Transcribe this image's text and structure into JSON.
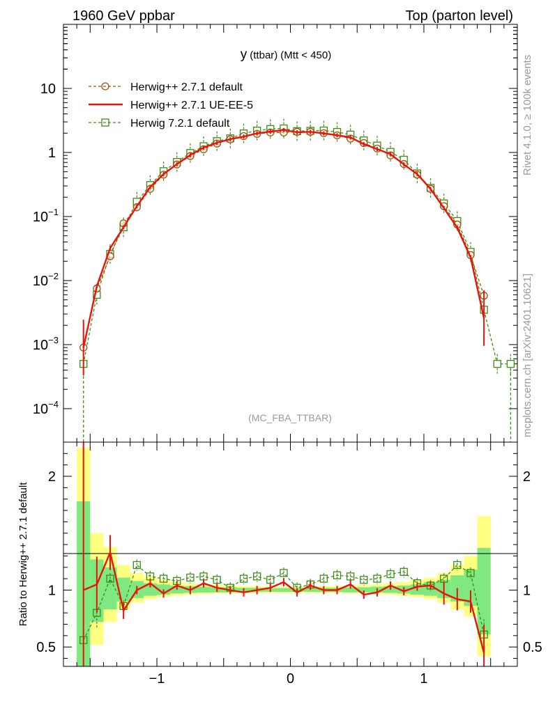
{
  "header": {
    "left_label": "1960 GeV ppbar",
    "right_label": "Top (parton level)"
  },
  "side_labels": {
    "rivet": "Rivet 4.1.0, ≥ 100k events",
    "mcplots": "mcplots.cern.ch [arXiv:2401.10621]"
  },
  "chart_data": [
    {
      "type": "line",
      "panel": "main",
      "title": "y (ttbar) (Mtt < 450)",
      "title_main": "y",
      "title_sub": "(ttbar)",
      "title_cond": "(Mtt < 450)",
      "watermark": "(MC_FBA_TTBAR)",
      "yscale": "log",
      "xlim": [
        -1.7,
        1.7
      ],
      "ylim": [
        3e-05,
        100
      ],
      "y_ticks": [
        {
          "value": 10,
          "base": "10",
          "exp": ""
        },
        {
          "value": 1,
          "base": "1",
          "exp": ""
        },
        {
          "value": 0.1,
          "base": "10",
          "exp": "−1"
        },
        {
          "value": 0.01,
          "base": "10",
          "exp": "−2"
        },
        {
          "value": 0.001,
          "base": "10",
          "exp": "−3"
        },
        {
          "value": 0.0001,
          "base": "10",
          "exp": "−4"
        }
      ],
      "legend": {
        "position": "top-left",
        "entries": [
          "Herwig++ 2.7.1 default",
          "Herwig++ 2.7.1 UE-EE-5",
          "Herwig 7.2.1 default"
        ]
      },
      "colors": {
        "herwig_default": "#a0500a",
        "ue_ee5": "#e8140a",
        "h7": "#3c8c14"
      },
      "series": [
        {
          "name": "Herwig++ 2.7.1 default",
          "style": "circle-dashed",
          "x": [
            -1.55,
            -1.45,
            -1.35,
            -1.25,
            -1.15,
            -1.05,
            -0.95,
            -0.85,
            -0.75,
            -0.65,
            -0.55,
            -0.45,
            -0.35,
            -0.25,
            -0.15,
            -0.05,
            0.05,
            0.15,
            0.25,
            0.35,
            0.45,
            0.55,
            0.65,
            0.75,
            0.85,
            0.95,
            1.05,
            1.15,
            1.25,
            1.35,
            1.45
          ],
          "values": [
            0.0009,
            0.0075,
            0.024,
            0.078,
            0.14,
            0.27,
            0.45,
            0.65,
            0.88,
            1.12,
            1.38,
            1.6,
            1.8,
            1.95,
            2.05,
            2.05,
            2.1,
            2.1,
            2.0,
            1.85,
            1.65,
            1.4,
            1.15,
            0.9,
            0.66,
            0.45,
            0.27,
            0.145,
            0.075,
            0.025,
            0.0058
          ]
        },
        {
          "name": "Herwig++ 2.7.1 UE-EE-5",
          "style": "solid",
          "x": [
            -1.55,
            -1.45,
            -1.35,
            -1.25,
            -1.15,
            -1.05,
            -0.95,
            -0.85,
            -0.75,
            -0.65,
            -0.55,
            -0.45,
            -0.35,
            -0.25,
            -0.15,
            -0.05,
            0.05,
            0.15,
            0.25,
            0.35,
            0.45,
            0.55,
            0.65,
            0.75,
            0.85,
            0.95,
            1.05,
            1.15,
            1.25,
            1.35,
            1.45
          ],
          "values": [
            0.0009,
            0.0082,
            0.032,
            0.068,
            0.145,
            0.29,
            0.46,
            0.66,
            0.91,
            1.19,
            1.42,
            1.61,
            1.77,
            1.99,
            2.12,
            2.24,
            2.07,
            2.1,
            1.99,
            1.86,
            1.72,
            1.35,
            1.13,
            0.94,
            0.65,
            0.46,
            0.27,
            0.135,
            0.067,
            0.023,
            0.0026
          ]
        },
        {
          "name": "Herwig 7.2.1 default",
          "style": "square-dashed",
          "x": [
            -1.55,
            -1.45,
            -1.35,
            -1.25,
            -1.15,
            -1.05,
            -0.95,
            -0.85,
            -0.75,
            -0.65,
            -0.55,
            -0.45,
            -0.35,
            -0.25,
            -0.15,
            -0.05,
            0.05,
            0.15,
            0.25,
            0.35,
            0.45,
            0.55,
            0.65,
            0.75,
            0.85,
            0.95,
            1.05,
            1.15,
            1.25,
            1.35,
            1.45,
            1.55,
            1.65
          ],
          "values": [
            0.0005,
            0.006,
            0.026,
            0.068,
            0.17,
            0.31,
            0.51,
            0.71,
            0.98,
            1.25,
            1.5,
            1.66,
            1.98,
            2.19,
            2.32,
            2.37,
            2.15,
            2.18,
            2.2,
            2.09,
            1.9,
            1.54,
            1.28,
            1.02,
            0.77,
            0.47,
            0.28,
            0.16,
            0.085,
            0.028,
            0.0035,
            0.0005,
            0.0005
          ]
        }
      ]
    },
    {
      "type": "line",
      "panel": "ratio",
      "ylabel": "Ratio to Herwig++ 2.7.1 default",
      "xlim": [
        -1.7,
        1.7
      ],
      "ylim": [
        0.33,
        2.3
      ],
      "y_ticks": [
        "0.5",
        "1",
        "2"
      ],
      "x_ticks": [
        "−1",
        "0",
        "1"
      ],
      "band_edges": [
        -1.6,
        -1.5,
        -1.4,
        -1.3,
        -1.2,
        -1.1,
        -1.0,
        -0.9,
        -0.8,
        -0.7,
        -0.6,
        -0.5,
        -0.4,
        -0.3,
        -0.2,
        -0.1,
        0.0,
        0.1,
        0.2,
        0.3,
        0.4,
        0.5,
        0.6,
        0.7,
        0.8,
        0.9,
        1.0,
        1.1,
        1.2,
        1.3,
        1.4,
        1.5
      ],
      "band_yellow": [
        [
          0.1,
          2.25
        ],
        [
          0.52,
          1.5
        ],
        [
          0.72,
          1.38
        ],
        [
          0.83,
          1.22
        ],
        [
          0.89,
          1.15
        ],
        [
          0.92,
          1.12
        ],
        [
          0.94,
          1.09
        ],
        [
          0.95,
          1.07
        ],
        [
          0.96,
          1.06
        ],
        [
          0.965,
          1.05
        ],
        [
          0.97,
          1.045
        ],
        [
          0.97,
          1.04
        ],
        [
          0.975,
          1.035
        ],
        [
          0.975,
          1.035
        ],
        [
          0.975,
          1.03
        ],
        [
          0.975,
          1.03
        ],
        [
          0.975,
          1.03
        ],
        [
          0.975,
          1.03
        ],
        [
          0.975,
          1.035
        ],
        [
          0.975,
          1.035
        ],
        [
          0.97,
          1.04
        ],
        [
          0.97,
          1.045
        ],
        [
          0.965,
          1.05
        ],
        [
          0.96,
          1.06
        ],
        [
          0.95,
          1.07
        ],
        [
          0.94,
          1.09
        ],
        [
          0.92,
          1.11
        ],
        [
          0.89,
          1.15
        ],
        [
          0.83,
          1.22
        ],
        [
          0.77,
          1.3
        ],
        [
          0.42,
          1.65
        ]
      ],
      "band_green": [
        [
          0.1,
          1.78
        ],
        [
          0.72,
          1.27
        ],
        [
          0.83,
          1.2
        ],
        [
          0.9,
          1.11
        ],
        [
          0.93,
          1.08
        ],
        [
          0.95,
          1.06
        ],
        [
          0.96,
          1.05
        ],
        [
          0.97,
          1.04
        ],
        [
          0.975,
          1.035
        ],
        [
          0.978,
          1.03
        ],
        [
          0.98,
          1.025
        ],
        [
          0.98,
          1.025
        ],
        [
          0.983,
          1.02
        ],
        [
          0.983,
          1.02
        ],
        [
          0.985,
          1.018
        ],
        [
          0.985,
          1.018
        ],
        [
          0.985,
          1.018
        ],
        [
          0.985,
          1.018
        ],
        [
          0.983,
          1.02
        ],
        [
          0.983,
          1.02
        ],
        [
          0.98,
          1.025
        ],
        [
          0.98,
          1.025
        ],
        [
          0.978,
          1.03
        ],
        [
          0.975,
          1.035
        ],
        [
          0.97,
          1.04
        ],
        [
          0.96,
          1.05
        ],
        [
          0.95,
          1.07
        ],
        [
          0.93,
          1.09
        ],
        [
          0.9,
          1.13
        ],
        [
          0.86,
          1.18
        ],
        [
          0.61,
          1.37
        ]
      ],
      "series": [
        {
          "name": "Herwig++ 2.7.1 UE-EE-5",
          "x": [
            -1.55,
            -1.45,
            -1.35,
            -1.25,
            -1.15,
            -1.05,
            -0.95,
            -0.85,
            -0.75,
            -0.65,
            -0.55,
            -0.45,
            -0.35,
            -0.25,
            -0.15,
            -0.05,
            0.05,
            0.15,
            0.25,
            0.35,
            0.45,
            0.55,
            0.65,
            0.75,
            0.85,
            0.95,
            1.05,
            1.15,
            1.25,
            1.35,
            1.45
          ],
          "values": [
            1.0,
            1.05,
            1.33,
            0.82,
            1.0,
            1.06,
            0.97,
            1.04,
            1.0,
            1.06,
            1.02,
            1.0,
            0.98,
            1.0,
            1.02,
            1.07,
            0.98,
            1.04,
            1.0,
            1.0,
            1.05,
            0.96,
            0.98,
            1.04,
            0.99,
            1.03,
            1.04,
            0.97,
            0.92,
            0.9,
            0.45
          ]
        },
        {
          "name": "Herwig 7.2.1 default",
          "x": [
            -1.55,
            -1.45,
            -1.35,
            -1.25,
            -1.15,
            -1.05,
            -0.95,
            -0.85,
            -0.75,
            -0.65,
            -0.55,
            -0.45,
            -0.35,
            -0.25,
            -0.15,
            -0.05,
            0.05,
            0.15,
            0.25,
            0.35,
            0.45,
            0.55,
            0.65,
            0.75,
            0.85,
            0.95,
            1.05,
            1.15,
            1.25,
            1.35,
            1.45
          ],
          "values": [
            0.56,
            0.8,
            1.1,
            0.86,
            1.22,
            1.12,
            1.1,
            1.08,
            1.11,
            1.12,
            1.09,
            1.02,
            1.1,
            1.12,
            1.09,
            1.15,
            1.02,
            1.05,
            1.1,
            1.13,
            1.12,
            1.09,
            1.1,
            1.14,
            1.16,
            1.06,
            1.04,
            1.1,
            1.22,
            1.15,
            0.61
          ]
        }
      ]
    }
  ]
}
